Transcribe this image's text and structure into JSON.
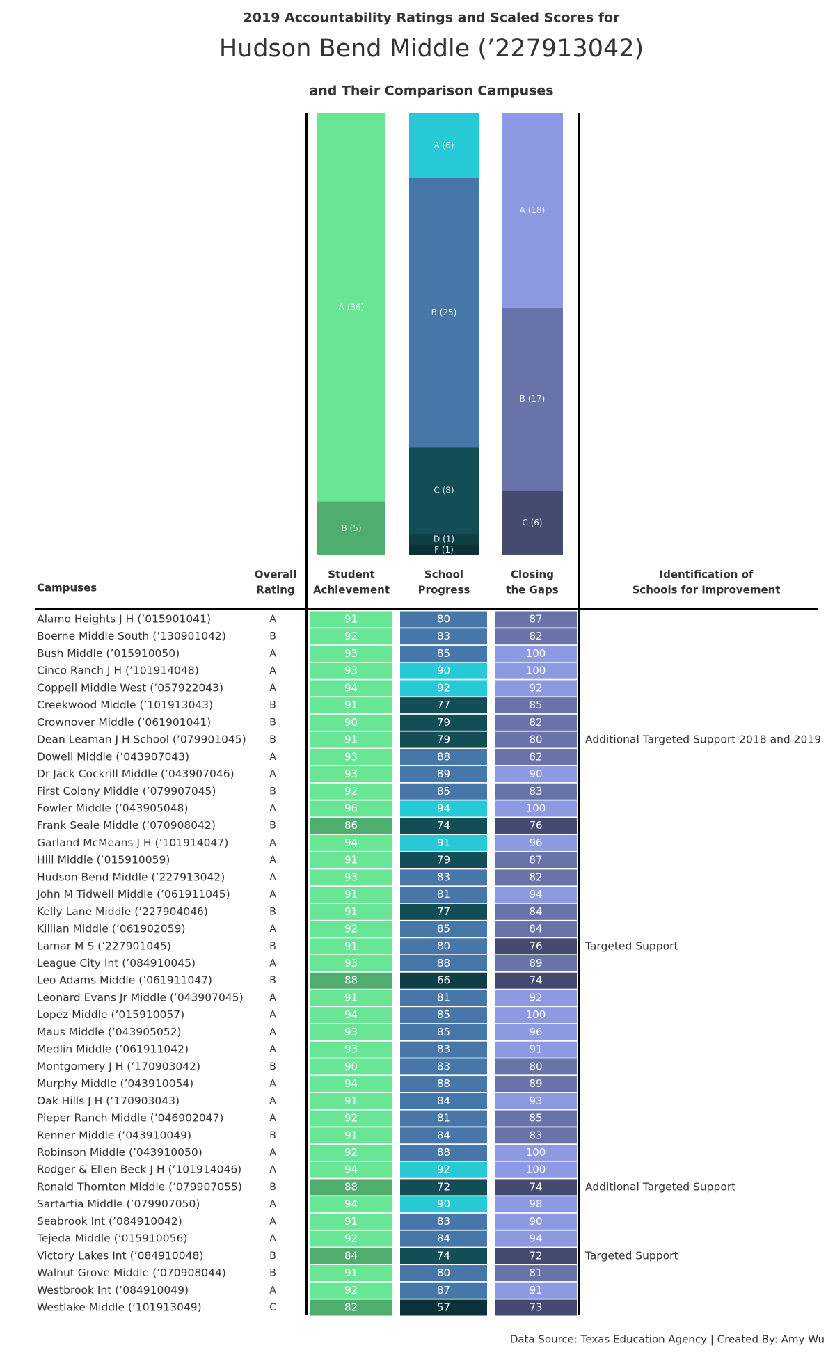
{
  "header": {
    "line1": "2019 Accountability Ratings and Scaled Scores for",
    "line2": "Hudson Bend Middle (’227913042)",
    "line3": "and Their Comparison Campuses"
  },
  "bars": [
    {
      "values": [
        36,
        5
      ],
      "value_labels": [
        "A (36)",
        "B (5)"
      ],
      "colors": [
        "#68e695",
        "#4fae6e"
      ]
    },
    {
      "values": [
        6,
        25,
        8,
        1,
        1
      ],
      "value_labels": [
        "A (6)",
        "B (25)",
        "C (8)",
        "D (1)",
        "F (1)"
      ],
      "colors": [
        "#27c9d6",
        "#4677a8",
        "#134e57",
        "#0e3f47",
        "#0a3238"
      ]
    },
    {
      "values": [
        18,
        17,
        6
      ],
      "value_labels": [
        "A (18)",
        "B (17)",
        "C (6)"
      ],
      "colors": [
        "#8d99e1",
        "#6773a9",
        "#444a70"
      ]
    }
  ],
  "headers": {
    "campuses": "Campuses",
    "overall_rating": [
      "Overall",
      "Rating"
    ],
    "identification": [
      "Identification of",
      "Schools for Improvement"
    ]
  },
  "score_columns": [
    {
      "header": [
        "Student",
        "Achievement"
      ],
      "grade_colors": {
        "A": "#68e695",
        "B": "#4fae6e",
        "C": "#3d8a57",
        "D": "#2f6b44",
        "F": "#234f33"
      }
    },
    {
      "header": [
        "School",
        "Progress"
      ],
      "grade_colors": {
        "A": "#27c9d6",
        "B": "#4677a8",
        "C": "#134e57",
        "D": "#0e3f47",
        "F": "#0a3238"
      }
    },
    {
      "header": [
        "Closing",
        "the Gaps"
      ],
      "grade_colors": {
        "A": "#8d99e1",
        "B": "#6773a9",
        "C": "#444a70",
        "D": "#363a5a",
        "F": "#2a2d46"
      }
    }
  ],
  "rows": [
    {
      "campus": "Alamo Heights J H (’015901041)",
      "rating": "A",
      "scores": [
        91,
        80,
        87
      ]
    },
    {
      "campus": "Boerne Middle South (’130901042)",
      "rating": "B",
      "scores": [
        92,
        83,
        82
      ]
    },
    {
      "campus": "Bush Middle (’015910050)",
      "rating": "A",
      "scores": [
        93,
        85,
        100
      ]
    },
    {
      "campus": "Cinco Ranch J H (’101914048)",
      "rating": "A",
      "scores": [
        93,
        90,
        100
      ]
    },
    {
      "campus": "Coppell Middle West (’057922043)",
      "rating": "A",
      "scores": [
        94,
        92,
        92
      ]
    },
    {
      "campus": "Creekwood Middle (’101913043)",
      "rating": "B",
      "scores": [
        91,
        77,
        85
      ]
    },
    {
      "campus": "Crownover Middle (’061901041)",
      "rating": "B",
      "scores": [
        90,
        79,
        82
      ]
    },
    {
      "campus": "Dean Leaman J H School (’079901045)",
      "rating": "B",
      "scores": [
        91,
        79,
        80
      ],
      "identification": "Additional Targeted Support 2018 and 2019"
    },
    {
      "campus": "Dowell Middle (’043907043)",
      "rating": "A",
      "scores": [
        93,
        88,
        82
      ]
    },
    {
      "campus": "Dr Jack Cockrill Middle (’043907046)",
      "rating": "A",
      "scores": [
        93,
        89,
        90
      ]
    },
    {
      "campus": "First Colony Middle (’079907045)",
      "rating": "B",
      "scores": [
        92,
        85,
        83
      ]
    },
    {
      "campus": "Fowler Middle (’043905048)",
      "rating": "A",
      "scores": [
        96,
        94,
        100
      ]
    },
    {
      "campus": "Frank Seale Middle (’070908042)",
      "rating": "B",
      "scores": [
        86,
        74,
        76
      ]
    },
    {
      "campus": "Garland McMeans J H (’101914047)",
      "rating": "A",
      "scores": [
        94,
        91,
        96
      ]
    },
    {
      "campus": "Hill Middle (’015910059)",
      "rating": "A",
      "scores": [
        91,
        79,
        87
      ]
    },
    {
      "campus": "Hudson Bend Middle (’227913042)",
      "rating": "A",
      "scores": [
        93,
        83,
        82
      ]
    },
    {
      "campus": "John M Tidwell Middle (’061911045)",
      "rating": "A",
      "scores": [
        91,
        81,
        94
      ]
    },
    {
      "campus": "Kelly Lane Middle (’227904046)",
      "rating": "B",
      "scores": [
        91,
        77,
        84
      ]
    },
    {
      "campus": "Killian Middle (’061902059)",
      "rating": "A",
      "scores": [
        92,
        85,
        84
      ]
    },
    {
      "campus": "Lamar M S (’227901045)",
      "rating": "B",
      "scores": [
        91,
        80,
        76
      ],
      "identification": "Targeted Support"
    },
    {
      "campus": "League City Int (’084910045)",
      "rating": "A",
      "scores": [
        93,
        88,
        89
      ]
    },
    {
      "campus": "Leo Adams Middle (’061911047)",
      "rating": "B",
      "scores": [
        88,
        66,
        74
      ]
    },
    {
      "campus": "Leonard Evans Jr Middle (’043907045)",
      "rating": "A",
      "scores": [
        91,
        81,
        92
      ]
    },
    {
      "campus": "Lopez Middle (’015910057)",
      "rating": "A",
      "scores": [
        94,
        85,
        100
      ]
    },
    {
      "campus": "Maus Middle (’043905052)",
      "rating": "A",
      "scores": [
        93,
        85,
        96
      ]
    },
    {
      "campus": "Medlin Middle (’061911042)",
      "rating": "A",
      "scores": [
        93,
        83,
        91
      ]
    },
    {
      "campus": "Montgomery J H (’170903042)",
      "rating": "B",
      "scores": [
        90,
        83,
        80
      ]
    },
    {
      "campus": "Murphy Middle (’043910054)",
      "rating": "A",
      "scores": [
        94,
        88,
        89
      ]
    },
    {
      "campus": "Oak Hills J H (’170903043)",
      "rating": "A",
      "scores": [
        91,
        84,
        93
      ]
    },
    {
      "campus": "Pieper Ranch Middle (’046902047)",
      "rating": "A",
      "scores": [
        92,
        81,
        85
      ]
    },
    {
      "campus": "Renner Middle (’043910049)",
      "rating": "B",
      "scores": [
        91,
        84,
        83
      ]
    },
    {
      "campus": "Robinson Middle (’043910050)",
      "rating": "A",
      "scores": [
        92,
        88,
        100
      ]
    },
    {
      "campus": "Rodger & Ellen Beck J H (’101914046)",
      "rating": "A",
      "scores": [
        94,
        92,
        100
      ]
    },
    {
      "campus": "Ronald Thornton Middle (’079907055)",
      "rating": "B",
      "scores": [
        88,
        72,
        74
      ],
      "identification": "Additional Targeted Support"
    },
    {
      "campus": "Sartartia Middle (’079907050)",
      "rating": "A",
      "scores": [
        94,
        90,
        98
      ]
    },
    {
      "campus": "Seabrook Int (’084910042)",
      "rating": "A",
      "scores": [
        91,
        83,
        90
      ]
    },
    {
      "campus": "Tejeda Middle (’015910056)",
      "rating": "A",
      "scores": [
        92,
        84,
        94
      ]
    },
    {
      "campus": "Victory Lakes Int (’084910048)",
      "rating": "B",
      "scores": [
        84,
        74,
        72
      ],
      "identification": "Targeted Support"
    },
    {
      "campus": "Walnut Grove Middle (’070908044)",
      "rating": "B",
      "scores": [
        91,
        80,
        81
      ]
    },
    {
      "campus": "Westbrook Int (’084910049)",
      "rating": "A",
      "scores": [
        92,
        87,
        91
      ]
    },
    {
      "campus": "Westlake Middle (’101913049)",
      "rating": "C",
      "scores": [
        82,
        57,
        73
      ]
    }
  ],
  "footer": "Data Source: Texas Education Agency | Created By: Amy Wu"
}
